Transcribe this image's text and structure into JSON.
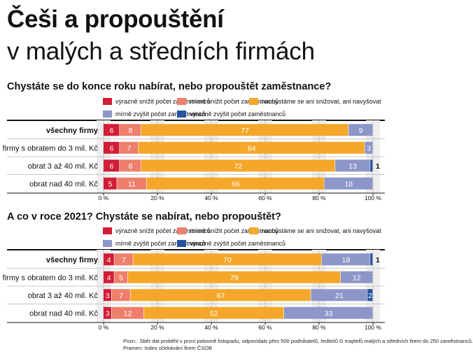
{
  "title": {
    "line1": "Češi a propouštění",
    "line2": "v malých a středních firmách"
  },
  "colors": {
    "strong_decrease": "#d21d36",
    "slight_decrease": "#ee7f6a",
    "unchanged": "#f4a72a",
    "slight_increase": "#8d96c8",
    "strong_increase": "#2553a0"
  },
  "chart_data": [
    {
      "type": "bar",
      "title": "Chystáte se do konce roku nabírat, nebo propouštět zaměstnance?",
      "stacked": true,
      "orientation": "horizontal",
      "legend": [
        "výrazně snížit počet zaměstnanců",
        "mírně snížit počet zaměstnanců",
        "nechystáme se ani snižovat, ani navyšovat",
        "mírně zvýšit počet zaměstnanců",
        "výrazně zvýšit počet zaměstnanců"
      ],
      "categories": [
        "všechny firmy",
        "firmy s obratem do 3 mil. Kč",
        "obrat 3 až 40 mil. Kč",
        "obrat nad 40 mil. Kč"
      ],
      "series": [
        {
          "name": "výrazně snížit počet zaměstnanců",
          "values": [
            6,
            6,
            6,
            5
          ]
        },
        {
          "name": "mírně snížit počet zaměstnanců",
          "values": [
            8,
            7,
            8,
            11
          ]
        },
        {
          "name": "nechystáme se ani snižovat, ani navyšovat",
          "values": [
            77,
            84,
            72,
            66
          ]
        },
        {
          "name": "mírně zvýšit počet zaměstnanců",
          "values": [
            9,
            3,
            13,
            18
          ]
        },
        {
          "name": "výrazně zvýšit počet zaměstnanců",
          "values": [
            0,
            0,
            1,
            0
          ]
        }
      ],
      "xticks": [
        "0 %",
        "20 %",
        "40 %",
        "60 %",
        "80 %",
        "100 %"
      ],
      "xlim": [
        0,
        100
      ]
    },
    {
      "type": "bar",
      "title": "A co v roce 2021? Chystáte se nabírat, nebo propouštět?",
      "stacked": true,
      "orientation": "horizontal",
      "legend": [
        "výrazně snížit počet zaměstnanců",
        "mírně snížit počet zaměstnanců",
        "nechystáme se ani snižovat, ani navyšovat",
        "mírně zvýšit počet zaměstnanců",
        "výrazně zvýšit počet zaměstnanců"
      ],
      "categories": [
        "všechny firmy",
        "firmy s obratem do 3 mil. Kč",
        "obrat 3 až 40 mil. Kč",
        "obrat nad 40 mil. Kč"
      ],
      "series": [
        {
          "name": "výrazně snížit počet zaměstnanců",
          "values": [
            4,
            4,
            3,
            3
          ]
        },
        {
          "name": "mírně snížit počet zaměstnanců",
          "values": [
            7,
            5,
            7,
            12
          ]
        },
        {
          "name": "nechystáme se ani snižovat, ani navyšovat",
          "values": [
            70,
            79,
            67,
            52
          ]
        },
        {
          "name": "mírně zvýšit počet zaměstnanců",
          "values": [
            18,
            12,
            21,
            33
          ]
        },
        {
          "name": "výrazně zvýšit počet zaměstnanců",
          "values": [
            1,
            0,
            2,
            0
          ]
        }
      ],
      "xticks": [
        "0 %",
        "20 %",
        "40 %",
        "60 %",
        "80 %",
        "100 %"
      ],
      "xlim": [
        0,
        100
      ]
    }
  ],
  "footnote": {
    "line1": "Pozn.: Sběr dat proběhl v první polovině listopadu, odpovídalo přes 500 podnikatelů, ředitelů či majitelů malých a středních firem do 250 zaměstnanců.",
    "line2": "Pramen: Index očekávání firem ČSOB"
  }
}
